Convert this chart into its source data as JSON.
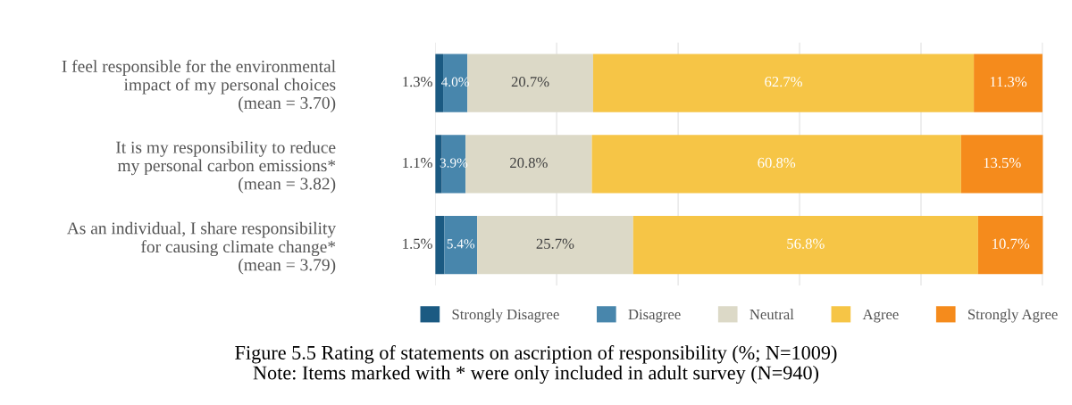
{
  "chart_data": {
    "type": "bar",
    "orientation": "horizontal",
    "stacked": true,
    "title": "Figure 5.5 Rating of statements on ascription of responsibility (%; N=1009)",
    "annotations": [
      "Note: Items marked with * were only included in adult survey (N=940)"
    ],
    "categories": [
      "I feel responsible for the environmental\nimpact of my personal choices\n(mean = 3.70)",
      "It is my responsibility to reduce\nmy personal carbon emissions*\n(mean = 3.82)",
      "As an individual, I share responsibility\nfor causing climate change*\n(mean = 3.79)"
    ],
    "series": [
      {
        "name": "Strongly Disagree",
        "color": "#1b5a82",
        "values": [
          1.3,
          1.1,
          1.5
        ],
        "value_labels": [
          "1.3%",
          "1.1%",
          "1.5%"
        ]
      },
      {
        "name": "Disagree",
        "color": "#4886ac",
        "values": [
          4.0,
          3.9,
          5.4
        ],
        "value_labels": [
          "4.0%",
          "3.9%",
          "5.4%"
        ]
      },
      {
        "name": "Neutral",
        "color": "#dcd9c7",
        "values": [
          20.7,
          20.8,
          25.7
        ],
        "value_labels": [
          "20.7%",
          "20.8%",
          "25.7%"
        ]
      },
      {
        "name": "Agree",
        "color": "#f6c546",
        "values": [
          62.7,
          60.8,
          56.8
        ],
        "value_labels": [
          "62.7%",
          "60.8%",
          "56.8%"
        ]
      },
      {
        "name": "Strongly Agree",
        "color": "#f58b1c",
        "values": [
          11.3,
          13.5,
          10.7
        ],
        "value_labels": [
          "11.3%",
          "13.5%",
          "10.7%"
        ]
      }
    ],
    "xlim": [
      0,
      100.1
    ],
    "xticks": [
      {
        "value": 0,
        "label": null
      },
      {
        "value": 20,
        "label": null
      },
      {
        "value": 40,
        "label": null
      },
      {
        "value": 60,
        "label": null
      },
      {
        "value": 80,
        "label": null
      },
      {
        "value": 100,
        "label": null
      }
    ],
    "tick_labels": "y",
    "grid": "x",
    "legend": "bottom"
  }
}
